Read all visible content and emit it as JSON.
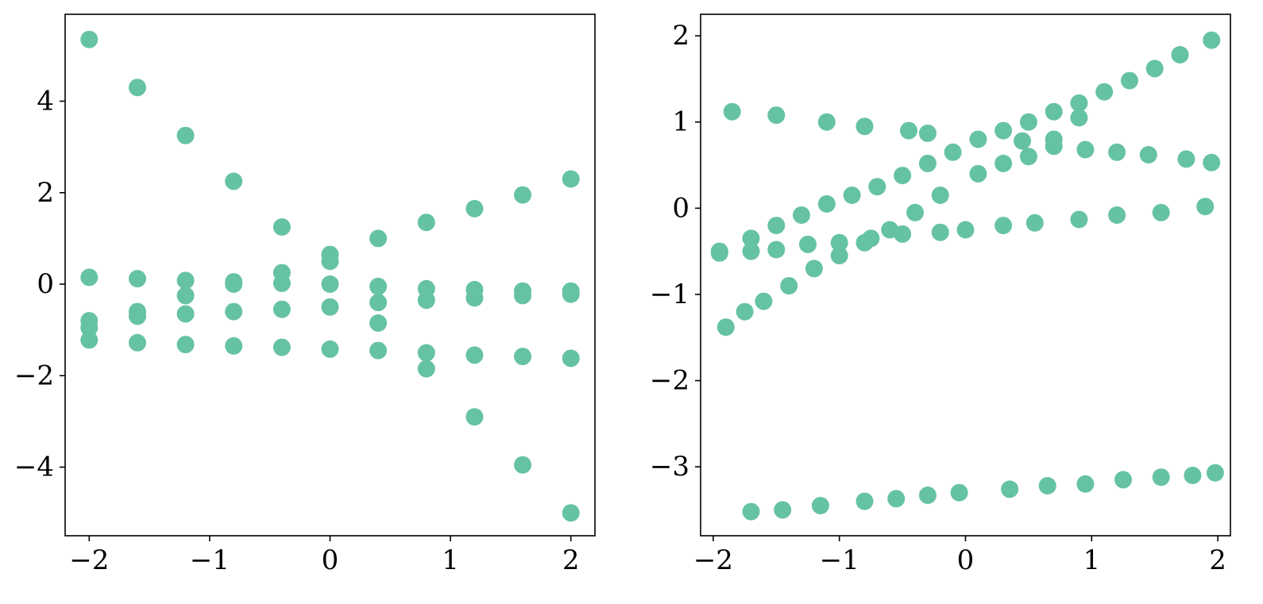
{
  "chart_data": [
    {
      "type": "scatter",
      "title": "",
      "xlabel": "",
      "ylabel": "",
      "xlim": [
        -2.2,
        2.2
      ],
      "ylim": [
        -5.5,
        5.9
      ],
      "xticks": [
        -2,
        -1,
        0,
        1,
        2
      ],
      "xtick_labels": [
        "−2",
        "−1",
        "0",
        "1",
        "2"
      ],
      "yticks": [
        -4,
        -2,
        0,
        2,
        4
      ],
      "ytick_labels": [
        "−4",
        "−2",
        "0",
        "2",
        "4"
      ],
      "grid": false,
      "legend": "none",
      "color": "#66c2a5",
      "series": [
        {
          "x": [
            -2.0,
            -1.6,
            -1.2,
            -0.8,
            -0.4,
            0.0,
            0.4,
            0.8,
            1.2,
            1.6,
            2.0
          ],
          "y": [
            5.35,
            4.3,
            3.25,
            2.25,
            1.25,
            0.5,
            -0.85,
            -1.85,
            -2.9,
            -3.95,
            -5.0
          ]
        },
        {
          "x": [
            -2.0,
            -1.6,
            -1.2,
            -0.8,
            -0.4,
            0.0,
            0.4,
            0.8,
            1.2,
            1.6,
            2.0
          ],
          "y": [
            -0.95,
            -0.6,
            -0.25,
            0.0,
            0.25,
            0.65,
            1.0,
            1.35,
            1.65,
            1.95,
            2.3
          ]
        },
        {
          "x": [
            -2.0,
            -1.6,
            -1.2,
            -0.8,
            -0.4,
            0.0,
            0.4,
            0.8,
            1.2,
            1.6,
            2.0
          ],
          "y": [
            0.15,
            0.12,
            0.08,
            0.05,
            0.02,
            0.0,
            -0.05,
            -0.1,
            -0.12,
            -0.15,
            -0.15
          ]
        },
        {
          "x": [
            -2.0,
            -1.6,
            -1.2,
            -0.8,
            -0.4,
            0.0,
            0.4,
            0.8,
            1.2,
            1.6,
            2.0
          ],
          "y": [
            -0.8,
            -0.7,
            -0.65,
            -0.6,
            -0.55,
            -0.5,
            -0.4,
            -0.35,
            -0.3,
            -0.25,
            -0.22
          ]
        },
        {
          "x": [
            -2.0,
            -1.6,
            -1.2,
            -0.8,
            -0.4,
            0.0,
            0.4,
            0.8,
            1.2,
            1.6,
            2.0
          ],
          "y": [
            -1.22,
            -1.28,
            -1.32,
            -1.35,
            -1.38,
            -1.42,
            -1.45,
            -1.5,
            -1.55,
            -1.58,
            -1.62
          ]
        }
      ]
    },
    {
      "type": "scatter",
      "title": "",
      "xlabel": "",
      "ylabel": "",
      "xlim": [
        -2.1,
        2.1
      ],
      "ylim": [
        -3.8,
        2.25
      ],
      "xticks": [
        -2,
        -1,
        0,
        1,
        2
      ],
      "xtick_labels": [
        "−2",
        "−1",
        "0",
        "1",
        "2"
      ],
      "yticks": [
        -3,
        -2,
        -1,
        0,
        1,
        2
      ],
      "ytick_labels": [
        "−3",
        "−2",
        "−1",
        "0",
        "1",
        "2"
      ],
      "grid": false,
      "legend": "none",
      "color": "#66c2a5",
      "series": [
        {
          "x": [
            -1.95,
            -1.7,
            -1.5,
            -1.3,
            -1.1,
            -0.9,
            -0.7,
            -0.5,
            -0.3,
            -0.1,
            0.1,
            0.3,
            0.5,
            0.7,
            0.9,
            1.1,
            1.3,
            1.5,
            1.7,
            1.95
          ],
          "y": [
            -0.5,
            -0.35,
            -0.2,
            -0.08,
            0.05,
            0.15,
            0.25,
            0.38,
            0.52,
            0.65,
            0.8,
            0.9,
            1.0,
            1.12,
            1.22,
            1.35,
            1.48,
            1.62,
            1.78,
            1.95
          ]
        },
        {
          "x": [
            -1.9,
            -1.75,
            -1.6,
            -1.4,
            -1.2,
            -1.0,
            -0.8,
            -0.6,
            -0.4,
            -0.2,
            0.1,
            0.3,
            0.5,
            0.7,
            0.9
          ],
          "y": [
            -1.38,
            -1.2,
            -1.08,
            -0.9,
            -0.7,
            -0.55,
            -0.4,
            -0.25,
            -0.05,
            0.15,
            0.4,
            0.52,
            0.6,
            0.8,
            1.05
          ]
        },
        {
          "x": [
            -1.85,
            -1.5,
            -1.1,
            -0.8,
            -0.45,
            -0.3,
            0.45,
            0.7,
            0.95,
            1.2,
            1.45,
            1.75,
            1.95
          ],
          "y": [
            1.12,
            1.08,
            1.0,
            0.95,
            0.9,
            0.87,
            0.78,
            0.72,
            0.68,
            0.65,
            0.62,
            0.57,
            0.53
          ]
        },
        {
          "x": [
            -1.95,
            -1.7,
            -1.5,
            -1.25,
            -1.0,
            -0.75,
            -0.5,
            -0.2,
            0.0,
            0.3,
            0.55,
            0.9,
            1.2,
            1.55,
            1.9
          ],
          "y": [
            -0.52,
            -0.5,
            -0.48,
            -0.42,
            -0.4,
            -0.35,
            -0.3,
            -0.28,
            -0.25,
            -0.2,
            -0.17,
            -0.13,
            -0.08,
            -0.05,
            0.02
          ]
        },
        {
          "x": [
            -1.7,
            -1.45,
            -1.15,
            -0.8,
            -0.55,
            -0.3,
            -0.05,
            0.35,
            0.65,
            0.95,
            1.25,
            1.55,
            1.8,
            1.98
          ],
          "y": [
            -3.52,
            -3.5,
            -3.45,
            -3.4,
            -3.37,
            -3.33,
            -3.3,
            -3.26,
            -3.22,
            -3.2,
            -3.15,
            -3.12,
            -3.1,
            -3.07
          ]
        }
      ]
    }
  ]
}
